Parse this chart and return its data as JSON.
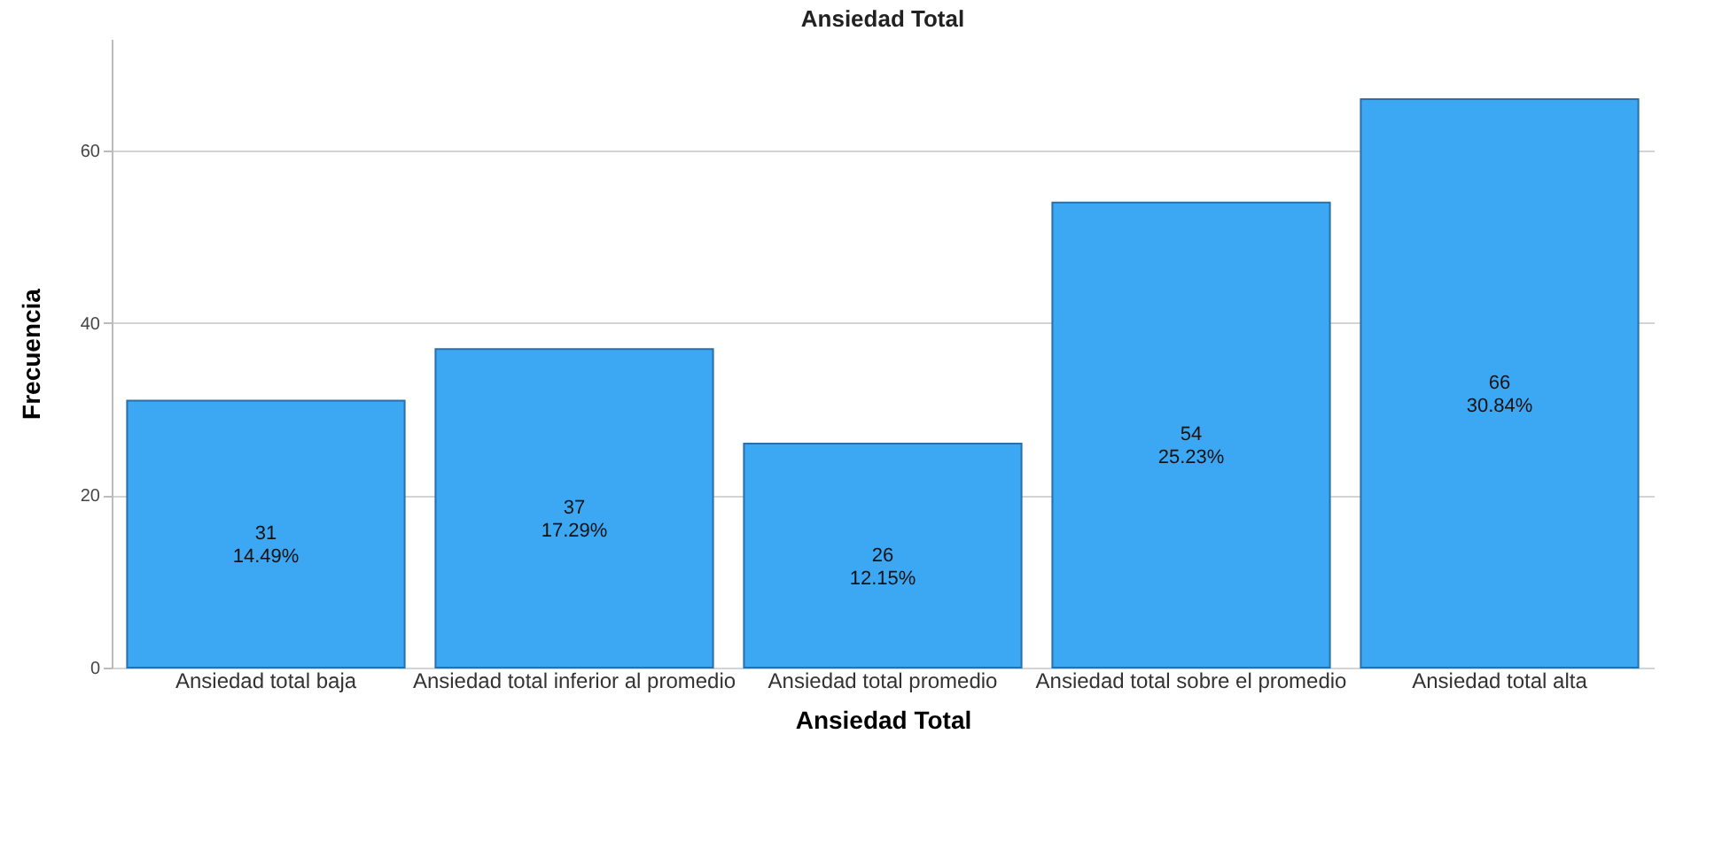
{
  "chart_data": {
    "type": "bar",
    "title": "Ansiedad Total",
    "xlabel": "Ansiedad Total",
    "ylabel": "Frecuencia",
    "categories": [
      "Ansiedad total\nbaja",
      "Ansiedad total\ninferior al\npromedio",
      "Ansiedad total\npromedio",
      "Ansiedad total\nsobre el promedio",
      "Ansiedad total alta"
    ],
    "values": [
      31,
      37,
      26,
      54,
      66
    ],
    "value_labels": [
      "31\n14.49%",
      "37\n17.29%",
      "26\n12.15%",
      "54\n25.23%",
      "66\n30.84%"
    ],
    "color": "#3ca7f2",
    "ylim": [
      0,
      73
    ],
    "yticks": [
      0,
      20,
      40,
      60
    ],
    "grid": "y"
  }
}
